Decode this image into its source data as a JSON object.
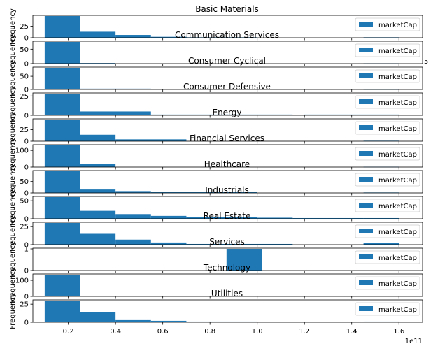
{
  "chart_data": {
    "type": "bar",
    "layout": "12 stacked histogram subplots sharing one x axis",
    "shared_x": {
      "ticks": [
        0.2,
        0.4,
        0.6,
        0.8,
        1.0,
        1.2,
        1.4,
        1.6
      ],
      "tick_labels": [
        "0.2",
        "0.4",
        "0.6",
        "0.8",
        "1.0",
        "1.2",
        "1.4",
        "1.6"
      ],
      "multiplier": "1e11",
      "range": [
        0.05,
        1.7
      ]
    },
    "color": "#1f77b4",
    "legend": {
      "label": "marketCap",
      "position": "right"
    },
    "subplots": [
      {
        "title": "Basic Materials",
        "ylabel": "Frequency",
        "ylim": [
          0,
          47
        ],
        "yticks": [
          0,
          25
        ],
        "ytick_labels": [
          "0",
          "25"
        ],
        "bins": [
          [
            0.1,
            0.25
          ],
          [
            0.25,
            0.4
          ],
          [
            0.4,
            0.55
          ],
          [
            0.55,
            0.7
          ],
          [
            0.7,
            0.85
          ],
          [
            0.85,
            1.0
          ],
          [
            1.45,
            1.6
          ]
        ],
        "counts": [
          47,
          13,
          6,
          2,
          1,
          1,
          1
        ]
      },
      {
        "title": "Communication Services",
        "ylabel": "Frequency",
        "ylim": [
          0,
          75
        ],
        "yticks": [
          0,
          50
        ],
        "ytick_labels": [
          "0",
          "50"
        ],
        "bins": [
          [
            0.1,
            0.25
          ],
          [
            0.25,
            0.4
          ],
          [
            1.45,
            1.6
          ]
        ],
        "counts": [
          75,
          2,
          1
        ]
      },
      {
        "title": "Consumer Cyclical",
        "ylabel": "Frequency",
        "ylim": [
          0,
          82
        ],
        "yticks": [
          0,
          50
        ],
        "ytick_labels": [
          "0",
          "50"
        ],
        "bins": [
          [
            0.1,
            0.25
          ],
          [
            0.25,
            0.55
          ],
          [
            1.45,
            1.6
          ]
        ],
        "counts": [
          82,
          3,
          1
        ],
        "annotation": "5"
      },
      {
        "title": "Consumer Defensive",
        "ylabel": "Frequency",
        "ylim": [
          0,
          28
        ],
        "yticks": [
          0,
          25
        ],
        "ytick_labels": [
          "0",
          "25"
        ],
        "bins": [
          [
            0.1,
            0.25
          ],
          [
            0.25,
            0.55
          ],
          [
            0.55,
            0.85
          ],
          [
            0.85,
            1.15
          ],
          [
            1.2,
            1.45
          ],
          [
            1.45,
            1.6
          ]
        ],
        "counts": [
          28,
          5,
          1,
          1,
          1,
          1
        ]
      },
      {
        "title": "Energy",
        "ylabel": "Frequency",
        "ylim": [
          0,
          47
        ],
        "yticks": [
          0,
          25
        ],
        "ytick_labels": [
          "0",
          "25"
        ],
        "bins": [
          [
            0.1,
            0.25
          ],
          [
            0.25,
            0.4
          ],
          [
            0.4,
            0.7
          ],
          [
            1.45,
            1.6
          ]
        ],
        "counts": [
          47,
          14,
          4,
          1
        ]
      },
      {
        "title": "Financial Services",
        "ylabel": "Frequency",
        "ylim": [
          0,
          130
        ],
        "yticks": [
          0,
          100
        ],
        "ytick_labels": [
          "0",
          "100"
        ],
        "bins": [
          [
            0.1,
            0.25
          ],
          [
            0.25,
            0.4
          ],
          [
            1.45,
            1.6
          ]
        ],
        "counts": [
          130,
          18,
          2
        ]
      },
      {
        "title": "Healthcare",
        "ylabel": "Frequency",
        "ylim": [
          0,
          95
        ],
        "yticks": [
          0,
          50
        ],
        "ytick_labels": [
          "0",
          "50"
        ],
        "bins": [
          [
            0.1,
            0.25
          ],
          [
            0.25,
            0.4
          ],
          [
            0.4,
            0.55
          ],
          [
            0.55,
            1.0
          ],
          [
            1.45,
            1.6
          ]
        ],
        "counts": [
          95,
          15,
          8,
          3,
          2
        ]
      },
      {
        "title": "Industrials",
        "ylabel": "Frequency",
        "ylim": [
          0,
          60
        ],
        "yticks": [
          0,
          50
        ],
        "ytick_labels": [
          "0",
          "50"
        ],
        "bins": [
          [
            0.1,
            0.25
          ],
          [
            0.25,
            0.4
          ],
          [
            0.4,
            0.55
          ],
          [
            0.55,
            0.7
          ],
          [
            0.7,
            0.85
          ],
          [
            0.85,
            1.0
          ],
          [
            1.0,
            1.15
          ],
          [
            1.15,
            1.3
          ],
          [
            1.3,
            1.45
          ],
          [
            1.45,
            1.6
          ]
        ],
        "counts": [
          60,
          22,
          13,
          8,
          5,
          4,
          3,
          2,
          2,
          2
        ]
      },
      {
        "title": "Real Estate",
        "ylabel": "Frequency",
        "ylim": [
          0,
          30
        ],
        "yticks": [
          0,
          25
        ],
        "ytick_labels": [
          "0",
          "25"
        ],
        "bins": [
          [
            0.1,
            0.25
          ],
          [
            0.25,
            0.4
          ],
          [
            0.4,
            0.55
          ],
          [
            0.55,
            0.7
          ],
          [
            0.7,
            1.15
          ],
          [
            1.45,
            1.6
          ]
        ],
        "counts": [
          30,
          15,
          7,
          3,
          1,
          2
        ]
      },
      {
        "title": "Services",
        "ylabel": "Frequency",
        "ylim": [
          0,
          1
        ],
        "yticks": [
          0,
          1
        ],
        "ytick_labels": [
          "0",
          "1"
        ],
        "bins": [
          [
            0.87,
            1.02
          ]
        ],
        "counts": [
          1
        ]
      },
      {
        "title": "Technology",
        "ylabel": "Frequency",
        "ylim": [
          0,
          135
        ],
        "yticks": [
          0,
          100
        ],
        "ytick_labels": [
          "0",
          "100"
        ],
        "bins": [
          [
            0.1,
            0.25
          ]
        ],
        "counts": [
          135
        ]
      },
      {
        "title": "Utilities",
        "ylabel": "Frequency",
        "ylim": [
          0,
          30
        ],
        "yticks": [
          0,
          25
        ],
        "ytick_labels": [
          "0",
          "25"
        ],
        "bins": [
          [
            0.1,
            0.25
          ],
          [
            0.25,
            0.4
          ],
          [
            0.4,
            0.55
          ],
          [
            0.55,
            0.7
          ],
          [
            0.7,
            1.0
          ],
          [
            1.45,
            1.6
          ]
        ],
        "counts": [
          30,
          14,
          3,
          2,
          1,
          1
        ]
      }
    ]
  }
}
